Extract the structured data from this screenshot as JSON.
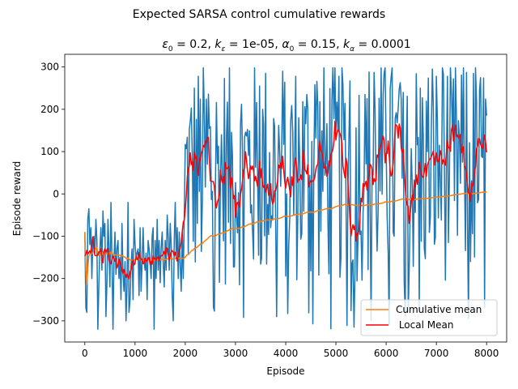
{
  "figure": {
    "suptitle": "Expected SARSA control cumulative rewards",
    "subtitle": {
      "eps_sym": "ε",
      "eps_val": " = 0.2, ",
      "keps_sym": "k",
      "keps_val": " = 1e-05, ",
      "alpha_sym": "α",
      "alpha_val": " = 0.15, ",
      "kalpha_sym": "k",
      "kalpha_val": " = 0.0001",
      "sub0": "0",
      "sub_eps": "ε",
      "sub_alpha": "α"
    }
  },
  "chart_data": {
    "type": "line",
    "xlabel": "Episode",
    "ylabel": "Episode reward",
    "xlim": [
      -400,
      8400
    ],
    "ylim": [
      -350,
      330
    ],
    "xticks": [
      0,
      1000,
      2000,
      3000,
      4000,
      5000,
      6000,
      7000,
      8000
    ],
    "yticks": [
      -300,
      -200,
      -100,
      0,
      100,
      200,
      300
    ],
    "grid": false,
    "legend_position": "lower right",
    "colors": {
      "raw": "#1f77b4",
      "cumulative": "#ff7f0e",
      "local": "#ff0000"
    },
    "series": [
      {
        "key": "raw",
        "x_step": 20,
        "x_start": 0,
        "values": [
          -90,
          -270,
          -280,
          -60,
          -35,
          -120,
          -80,
          -200,
          -110,
          -100,
          -140,
          -60,
          -110,
          -320,
          -210,
          -130,
          -80,
          -180,
          -40,
          -100,
          -70,
          -290,
          -210,
          -60,
          -130,
          -220,
          -20,
          -150,
          -320,
          -160,
          -90,
          -190,
          -130,
          -110,
          -200,
          -150,
          -250,
          -70,
          -190,
          -230,
          -160,
          -300,
          -220,
          -20,
          -280,
          -250,
          -170,
          -130,
          -250,
          -60,
          -120,
          -150,
          -140,
          -130,
          -240,
          -80,
          -230,
          -160,
          -80,
          -160,
          -180,
          -140,
          -250,
          -110,
          -130,
          -160,
          -200,
          -100,
          -80,
          -320,
          -110,
          -200,
          -60,
          -180,
          -110,
          -210,
          -130,
          -90,
          -160,
          -220,
          -110,
          -180,
          -50,
          -100,
          -180,
          -70,
          -120,
          -240,
          -300,
          -110,
          -20,
          -150,
          -80,
          -200,
          -90,
          -170,
          -230,
          -90,
          -200,
          -50
        ],
        "values_tail": "generated"
      },
      {
        "key": "cumulative",
        "name": "Cumulative mean"
      },
      {
        "key": "local",
        "name": " Local Mean"
      }
    ]
  }
}
